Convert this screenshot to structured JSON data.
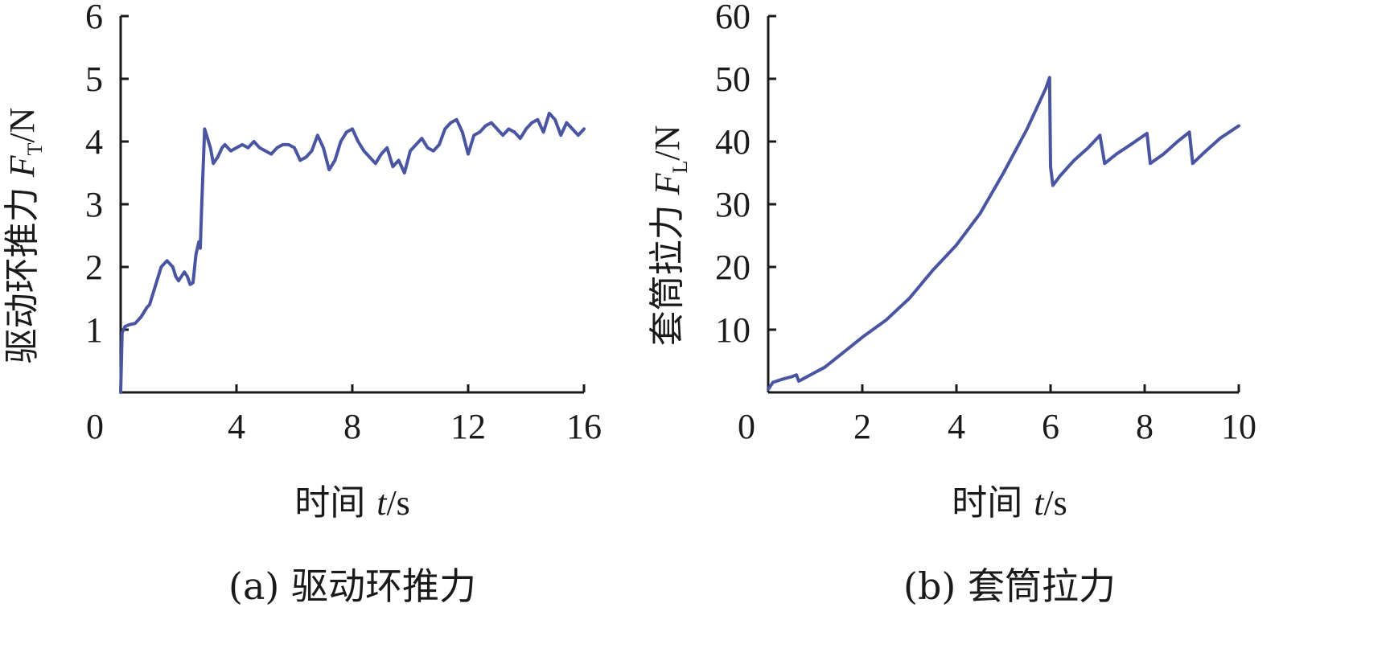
{
  "colors": {
    "series": "#4a55a2",
    "axis": "#1a1a1a"
  },
  "chart_data": [
    {
      "type": "line",
      "caption": "(a) 驱动环推力",
      "ylabel_cn": "驱动环推力",
      "ylabel_sym": "F",
      "ylabel_sub": "T",
      "ylabel_unit": "/N",
      "xlabel_cn": "时间",
      "xlabel_sym": "t",
      "xlabel_unit": "/s",
      "origin_label": "0",
      "xlim": [
        0,
        16
      ],
      "ylim": [
        0,
        6
      ],
      "xticks": [
        4,
        8,
        12,
        16
      ],
      "xtick_labels": [
        "4",
        "8",
        "12",
        "16"
      ],
      "yticks": [
        1,
        2,
        3,
        4,
        5,
        6
      ],
      "ytick_labels": [
        "1",
        "2",
        "3",
        "4",
        "5",
        "6"
      ],
      "series": [
        {
          "x": [
            0.0,
            0.05,
            0.15,
            0.3,
            0.5,
            0.7,
            0.9,
            1.0,
            1.2,
            1.4,
            1.6,
            1.7,
            1.8,
            1.9,
            2.0,
            2.1,
            2.2,
            2.3,
            2.4,
            2.5,
            2.6,
            2.7,
            2.75,
            2.8,
            2.9,
            3.0,
            3.1,
            3.2,
            3.35,
            3.5,
            3.6,
            3.8,
            4.0,
            4.2,
            4.4,
            4.6,
            4.8,
            5.0,
            5.2,
            5.4,
            5.6,
            5.8,
            6.0,
            6.2,
            6.4,
            6.6,
            6.8,
            7.0,
            7.2,
            7.4,
            7.6,
            7.8,
            8.0,
            8.2,
            8.4,
            8.6,
            8.8,
            9.0,
            9.2,
            9.4,
            9.6,
            9.8,
            10.0,
            10.2,
            10.4,
            10.6,
            10.8,
            11.0,
            11.2,
            11.4,
            11.6,
            11.8,
            12.0,
            12.2,
            12.4,
            12.6,
            12.8,
            13.0,
            13.2,
            13.4,
            13.6,
            13.8,
            14.0,
            14.2,
            14.4,
            14.6,
            14.8,
            15.0,
            15.2,
            15.4,
            15.6,
            15.8,
            16.0
          ],
          "y": [
            0.0,
            0.95,
            1.05,
            1.08,
            1.1,
            1.2,
            1.35,
            1.4,
            1.7,
            2.0,
            2.1,
            2.05,
            2.0,
            1.85,
            1.78,
            1.85,
            1.92,
            1.85,
            1.72,
            1.75,
            2.2,
            2.4,
            2.3,
            3.0,
            4.2,
            4.05,
            3.9,
            3.65,
            3.75,
            3.9,
            3.95,
            3.85,
            3.9,
            3.95,
            3.9,
            4.0,
            3.9,
            3.85,
            3.8,
            3.9,
            3.95,
            3.95,
            3.9,
            3.7,
            3.75,
            3.85,
            4.1,
            3.9,
            3.55,
            3.7,
            4.0,
            4.15,
            4.2,
            4.0,
            3.85,
            3.75,
            3.65,
            3.8,
            3.9,
            3.6,
            3.7,
            3.5,
            3.85,
            3.95,
            4.05,
            3.9,
            3.85,
            3.95,
            4.2,
            4.3,
            4.35,
            4.15,
            3.8,
            4.1,
            4.15,
            4.25,
            4.3,
            4.2,
            4.1,
            4.2,
            4.15,
            4.05,
            4.2,
            4.3,
            4.35,
            4.15,
            4.45,
            4.35,
            4.1,
            4.3,
            4.2,
            4.1,
            4.2
          ]
        }
      ]
    },
    {
      "type": "line",
      "caption": "(b) 套筒拉力",
      "ylabel_cn": "套筒拉力",
      "ylabel_sym": "F",
      "ylabel_sub": "L",
      "ylabel_unit": "/N",
      "xlabel_cn": "时间",
      "xlabel_sym": "t",
      "xlabel_unit": "/s",
      "origin_label": "0",
      "xlim": [
        0,
        10
      ],
      "ylim": [
        0,
        60
      ],
      "xticks": [
        2,
        4,
        6,
        8,
        10
      ],
      "xtick_labels": [
        "2",
        "4",
        "6",
        "8",
        "10"
      ],
      "yticks": [
        10,
        20,
        30,
        40,
        50,
        60
      ],
      "ytick_labels": [
        "10",
        "20",
        "30",
        "40",
        "50",
        "60"
      ],
      "series": [
        {
          "x": [
            0.0,
            0.1,
            0.3,
            0.5,
            0.6,
            0.65,
            0.8,
            1.0,
            1.2,
            1.5,
            2.0,
            2.5,
            3.0,
            3.5,
            4.0,
            4.5,
            5.0,
            5.5,
            5.9,
            5.98,
            6.0,
            6.05,
            6.2,
            6.5,
            6.8,
            7.05,
            7.15,
            7.4,
            7.7,
            8.05,
            8.12,
            8.4,
            8.7,
            8.95,
            9.02,
            9.3,
            9.6,
            10.0
          ],
          "y": [
            0.5,
            1.6,
            2.1,
            2.5,
            2.8,
            1.8,
            2.4,
            3.2,
            4.0,
            5.8,
            8.8,
            11.5,
            15.0,
            19.5,
            23.5,
            28.5,
            35.0,
            42.0,
            48.5,
            50.2,
            36.0,
            33.0,
            34.5,
            37.0,
            39.0,
            41.0,
            36.5,
            38.0,
            39.5,
            41.3,
            36.5,
            38.0,
            40.0,
            41.5,
            36.5,
            38.5,
            40.5,
            42.5
          ]
        }
      ]
    }
  ]
}
